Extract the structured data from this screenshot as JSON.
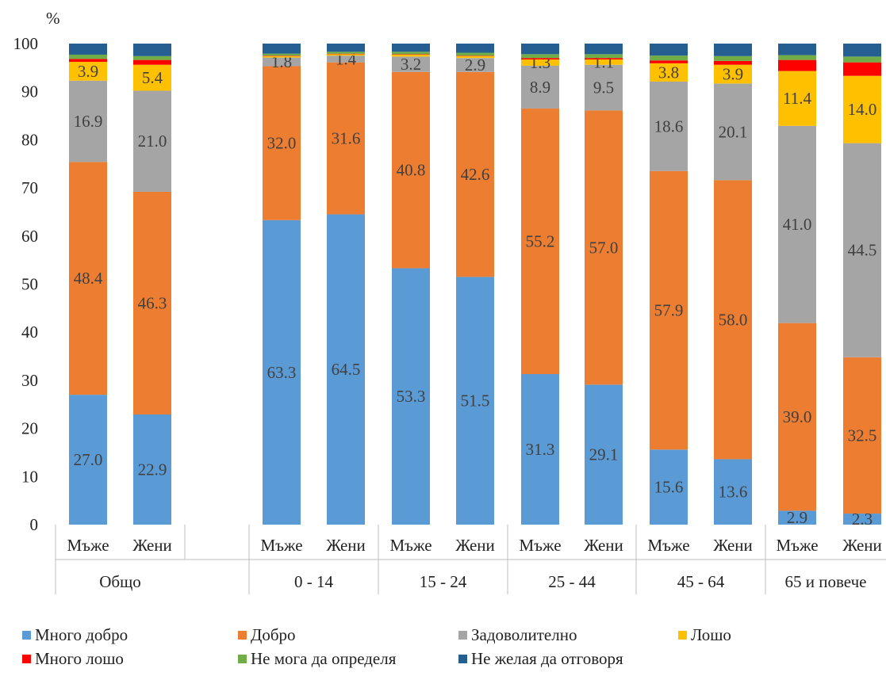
{
  "chart_data": {
    "type": "bar",
    "stacked": true,
    "y_unit": "%",
    "ylim": [
      0,
      100
    ],
    "yticks": [
      0,
      10,
      20,
      30,
      40,
      50,
      60,
      70,
      80,
      90,
      100
    ],
    "grid": false,
    "legend_position": "bottom",
    "groups": [
      "Общо",
      "0 - 14",
      "15 - 24",
      "25 - 44",
      "45 - 64",
      "65 и повече"
    ],
    "categories": [
      {
        "label": "Мъже",
        "group": 0
      },
      {
        "label": "Жени",
        "group": 0
      },
      {
        "label": "Мъже",
        "group": 1
      },
      {
        "label": "Жени",
        "group": 1
      },
      {
        "label": "Мъже",
        "group": 2
      },
      {
        "label": "Жени",
        "group": 2
      },
      {
        "label": "Мъже",
        "group": 3
      },
      {
        "label": "Жени",
        "group": 3
      },
      {
        "label": "Мъже",
        "group": 4
      },
      {
        "label": "Жени",
        "group": 4
      },
      {
        "label": "Мъже",
        "group": 5
      },
      {
        "label": "Жени",
        "group": 5
      }
    ],
    "series": [
      {
        "name": "Много добро",
        "color": "#5B9BD5",
        "values": [
          27.0,
          22.9,
          63.3,
          64.5,
          53.3,
          51.5,
          31.3,
          29.1,
          15.6,
          13.6,
          2.9,
          2.3
        ],
        "labels": [
          "27.0",
          "22.9",
          "63.3",
          "64.5",
          "53.3",
          "51.5",
          "31.3",
          "29.1",
          "15.6",
          "13.6",
          "2.9",
          "2.3"
        ]
      },
      {
        "name": "Добро",
        "color": "#ED7D31",
        "values": [
          48.4,
          46.3,
          32.0,
          31.6,
          40.8,
          42.6,
          55.2,
          57.0,
          57.9,
          58.0,
          39.0,
          32.5
        ],
        "labels": [
          "48.4",
          "46.3",
          "32.0",
          "31.6",
          "40.8",
          "42.6",
          "55.2",
          "57.0",
          "57.9",
          "58.0",
          "39.0",
          "32.5"
        ]
      },
      {
        "name": "Задоволително",
        "color": "#A5A5A5",
        "values": [
          16.9,
          21.0,
          1.8,
          1.4,
          3.2,
          2.9,
          8.9,
          9.5,
          18.6,
          20.1,
          41.0,
          44.5
        ],
        "labels": [
          "16.9",
          "21.0",
          "1.8",
          "1.4",
          "3.2",
          "2.9",
          "8.9",
          "9.5",
          "18.6",
          "20.1",
          "41.0",
          "44.5"
        ]
      },
      {
        "name": "Лошо",
        "color": "#FFC000",
        "values": [
          3.9,
          5.4,
          0.3,
          0.3,
          0.4,
          0.4,
          1.3,
          1.1,
          3.8,
          3.9,
          11.4,
          14.0
        ],
        "labels": [
          "3.9",
          "5.4",
          "",
          "",
          "",
          "",
          "1.3",
          "1.1",
          "3.8",
          "3.9",
          "11.4",
          "14.0"
        ]
      },
      {
        "name": "Много лошо",
        "color": "#FF0000",
        "values": [
          0.6,
          1.0,
          0.1,
          0.1,
          0.1,
          0.1,
          0.3,
          0.3,
          0.6,
          0.8,
          2.3,
          2.8
        ],
        "labels": []
      },
      {
        "name": "Не мога да определя",
        "color": "#70AD47",
        "values": [
          0.9,
          0.8,
          0.4,
          0.4,
          0.5,
          0.6,
          0.8,
          0.8,
          1.0,
          1.0,
          1.0,
          1.2
        ],
        "labels": []
      },
      {
        "name": "Не желая да отговоря",
        "color": "#255E91",
        "values": [
          2.3,
          2.6,
          2.1,
          1.7,
          1.7,
          1.9,
          2.2,
          2.2,
          2.5,
          2.6,
          2.4,
          2.7
        ],
        "labels": []
      }
    ]
  }
}
